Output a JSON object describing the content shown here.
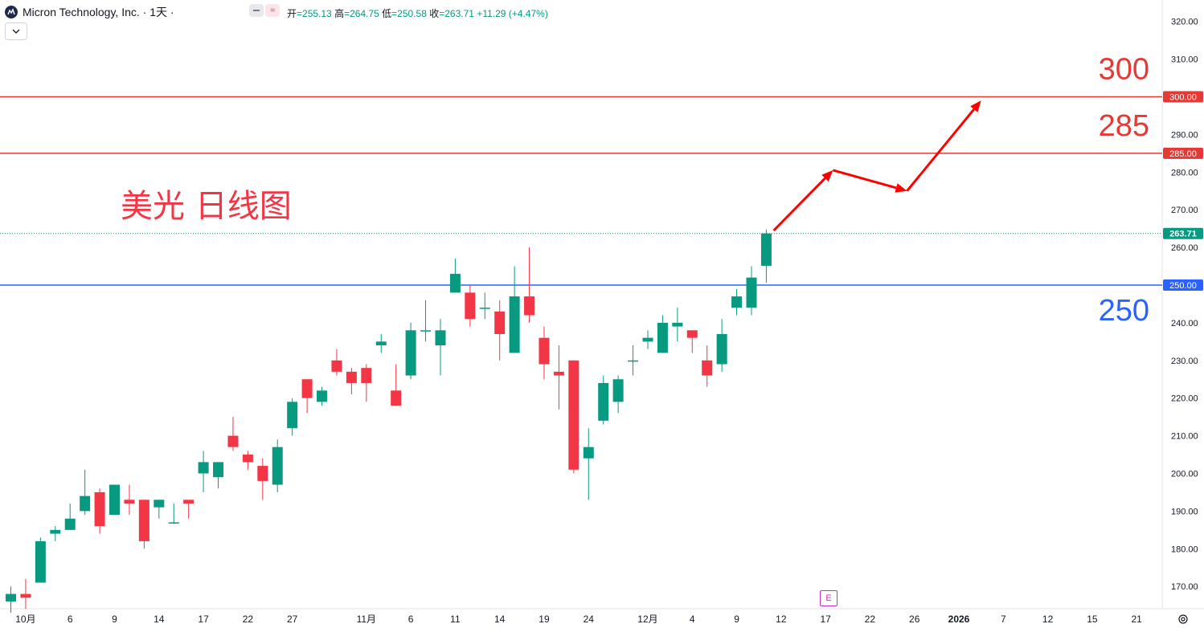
{
  "header": {
    "symbol": "Micron Technology, Inc. · 1天 ·",
    "ohlc": [
      {
        "label": "开",
        "value": "=255.13"
      },
      {
        "label": "高",
        "value": "=264.75"
      },
      {
        "label": "低",
        "value": "=250.58"
      },
      {
        "label": "收",
        "value": "=263.71"
      }
    ],
    "change": "+11.29 (+4.47%)",
    "icons": [
      "minus-icon",
      "wave-icon",
      "chevron-down-icon",
      "settings-icon"
    ]
  },
  "earnings_badge": "E",
  "colors": {
    "up": "#089981",
    "down": "#f23645",
    "red_line": "#e53935",
    "blue_line": "#2962ff",
    "arrow": "#ff0000"
  },
  "chart_data": {
    "type": "candlestick",
    "title": "美光 日线图",
    "ylim": [
      163,
      324
    ],
    "y_ticks": [
      170,
      180,
      190,
      200,
      210,
      220,
      230,
      240,
      250,
      260,
      270,
      280,
      290,
      300,
      310,
      320
    ],
    "x_tick_labels": [
      {
        "label": "10月",
        "idx": 1
      },
      {
        "label": "6",
        "idx": 4
      },
      {
        "label": "9",
        "idx": 7
      },
      {
        "label": "14",
        "idx": 10
      },
      {
        "label": "17",
        "idx": 13
      },
      {
        "label": "22",
        "idx": 16
      },
      {
        "label": "27",
        "idx": 19
      },
      {
        "label": "11月",
        "idx": 24
      },
      {
        "label": "6",
        "idx": 27
      },
      {
        "label": "11",
        "idx": 30
      },
      {
        "label": "14",
        "idx": 33
      },
      {
        "label": "19",
        "idx": 36
      },
      {
        "label": "24",
        "idx": 39
      },
      {
        "label": "12月",
        "idx": 43
      },
      {
        "label": "4",
        "idx": 46
      },
      {
        "label": "9",
        "idx": 49
      },
      {
        "label": "12",
        "idx": 52
      },
      {
        "label": "17",
        "idx": 55
      },
      {
        "label": "22",
        "idx": 58
      },
      {
        "label": "26",
        "idx": 61
      },
      {
        "label": "2026",
        "idx": 64,
        "bold": true
      },
      {
        "label": "7",
        "idx": 67
      },
      {
        "label": "12",
        "idx": 70
      },
      {
        "label": "15",
        "idx": 73
      },
      {
        "label": "21",
        "idx": 76
      }
    ],
    "candles": [
      [
        0,
        166,
        170,
        163,
        168
      ],
      [
        1,
        168,
        172,
        164,
        167
      ],
      [
        2,
        171,
        183,
        171,
        182
      ],
      [
        3,
        184,
        186,
        182,
        185
      ],
      [
        4,
        185,
        192,
        185,
        188
      ],
      [
        5,
        190,
        201,
        189,
        194
      ],
      [
        6,
        195,
        196,
        184,
        186
      ],
      [
        7,
        189,
        197,
        189,
        197
      ],
      [
        8,
        193,
        197,
        189,
        192
      ],
      [
        9,
        193,
        193,
        180,
        182
      ],
      [
        10,
        191,
        193,
        188,
        193
      ],
      [
        11,
        187,
        192,
        187,
        187
      ],
      [
        12,
        193,
        193,
        188,
        192
      ],
      [
        13,
        200,
        206,
        195,
        203
      ],
      [
        14,
        199,
        203,
        196,
        203
      ],
      [
        15,
        210,
        215,
        206,
        207
      ],
      [
        16,
        205,
        206,
        201,
        203
      ],
      [
        17,
        202,
        204,
        193,
        198
      ],
      [
        18,
        197,
        209,
        195,
        207
      ],
      [
        19,
        212,
        220,
        210,
        219
      ],
      [
        20,
        225,
        225,
        216,
        220
      ],
      [
        21,
        219,
        223,
        218,
        222
      ],
      [
        22,
        230,
        233,
        226,
        227
      ],
      [
        23,
        227,
        228,
        221,
        224
      ],
      [
        24,
        228,
        229,
        219,
        224
      ],
      [
        25,
        234,
        237,
        232,
        235
      ],
      [
        26,
        222,
        229,
        218,
        218
      ],
      [
        27,
        226,
        240,
        225,
        238
      ],
      [
        28,
        238,
        246,
        235,
        238
      ],
      [
        29,
        234,
        241,
        226,
        238
      ],
      [
        30,
        248,
        257,
        248,
        253
      ],
      [
        31,
        248,
        250,
        239,
        241
      ],
      [
        32,
        244,
        248,
        241,
        244
      ],
      [
        33,
        243,
        246,
        230,
        237
      ],
      [
        34,
        232,
        255,
        232,
        247
      ],
      [
        35,
        247,
        260,
        240,
        242
      ],
      [
        36,
        236,
        239,
        225,
        229
      ],
      [
        37,
        227,
        234,
        217,
        226
      ],
      [
        38,
        230,
        230,
        200,
        201
      ],
      [
        39,
        204,
        212,
        193,
        207
      ],
      [
        40,
        214,
        226,
        213,
        224
      ],
      [
        41,
        219,
        226,
        216,
        225
      ],
      [
        42,
        230,
        234,
        226,
        230
      ],
      [
        43,
        235,
        238,
        233,
        236
      ],
      [
        44,
        232,
        242,
        232,
        240
      ],
      [
        45,
        239,
        244,
        235,
        240
      ],
      [
        46,
        238,
        238,
        232,
        236
      ],
      [
        47,
        230,
        234,
        223,
        226
      ],
      [
        48,
        229,
        241,
        227,
        237
      ],
      [
        49,
        244,
        249,
        242,
        247
      ],
      [
        50,
        244,
        255,
        242,
        252
      ],
      [
        51,
        255.13,
        264.75,
        250.58,
        263.71
      ]
    ],
    "horizontal_lines": [
      {
        "price": 300,
        "color": "red",
        "label": "300",
        "axis_label": "300.00"
      },
      {
        "price": 285,
        "color": "red",
        "label": "285",
        "axis_label": "285.00"
      },
      {
        "price": 250,
        "color": "blue",
        "label": "250",
        "axis_label": "250.00"
      }
    ],
    "last_price": {
      "price": 263.71,
      "label": "263.71"
    },
    "arrow_path": [
      [
        51.5,
        264.5
      ],
      [
        55.5,
        280.5
      ],
      [
        60.5,
        275
      ],
      [
        65.5,
        299
      ]
    ]
  }
}
